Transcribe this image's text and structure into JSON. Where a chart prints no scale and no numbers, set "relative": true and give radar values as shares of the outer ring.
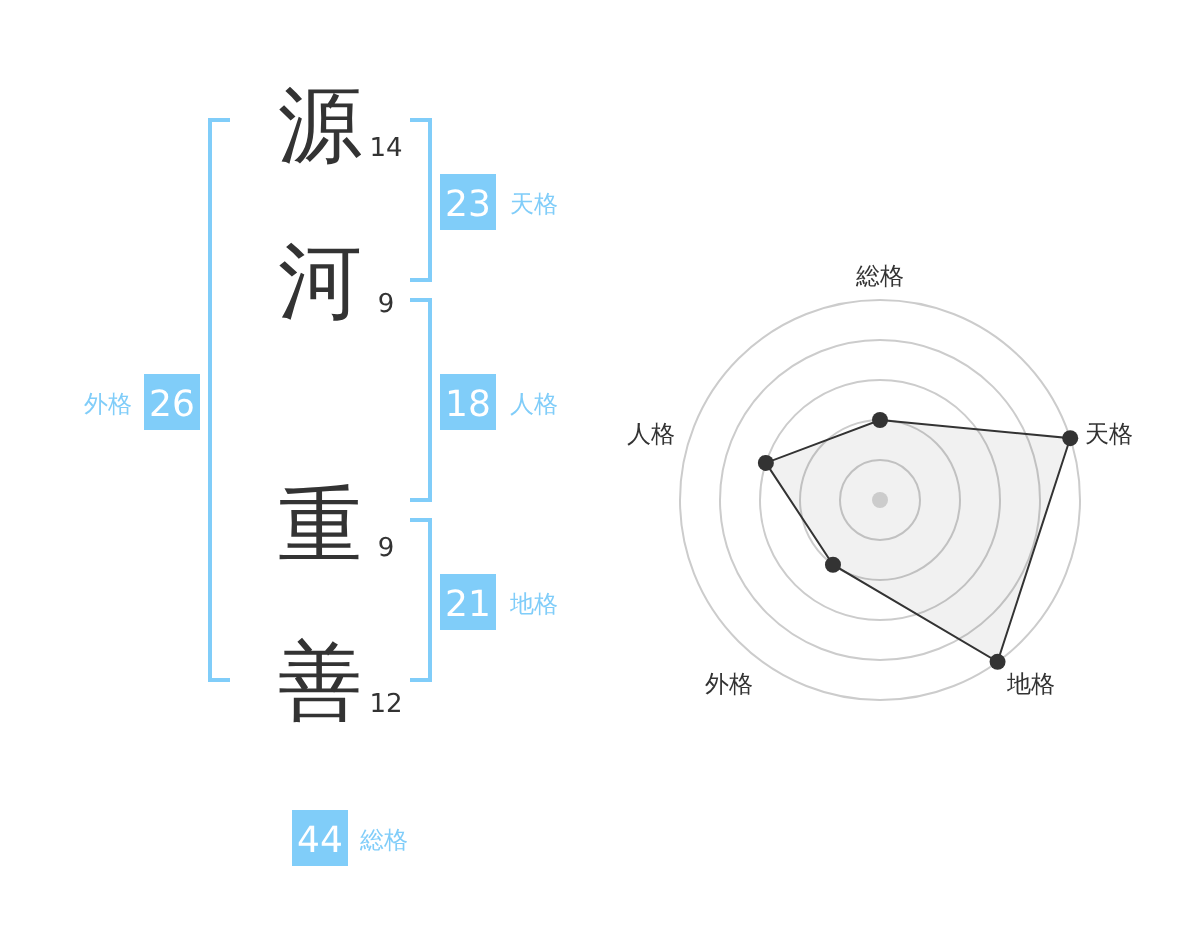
{
  "chart_data": [
    {
      "type": "other",
      "color": "#80cdf9",
      "annotations": [
        "源",
        "14",
        "河",
        "9",
        "重",
        "9",
        "善",
        "12",
        "23",
        "天格",
        "18",
        "人格",
        "21",
        "地格",
        "26",
        "外格",
        "44",
        "総格"
      ]
    },
    {
      "type": "radar",
      "categories": [
        "総格",
        "天格",
        "地格",
        "外格",
        "人格"
      ],
      "relative": true,
      "grid": true,
      "marker": "circle",
      "series": [
        {
          "color": "#333333",
          "values": [
            0.4,
            1,
            1,
            0.4,
            0.6
          ]
        }
      ]
    }
  ]
}
